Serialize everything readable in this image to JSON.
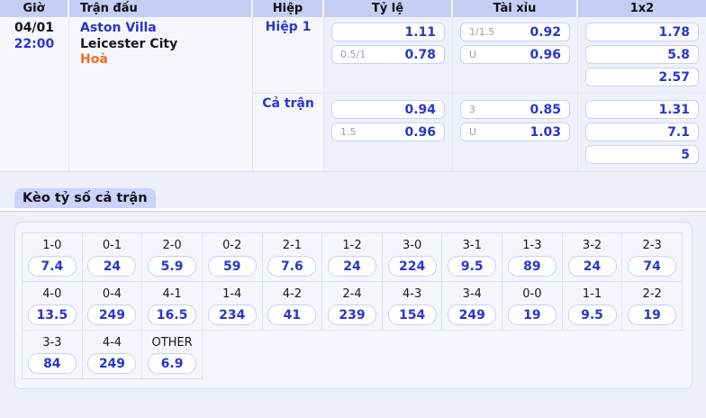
{
  "table": {
    "headers": [
      "Giờ",
      "Trận đấu",
      "Hiệp",
      "Tỷ lệ",
      "Tài xỉu",
      "1x2"
    ]
  },
  "match": {
    "date": "04/01",
    "time": "22:00",
    "home_team": "Aston Villa",
    "away_team": "Leicester City",
    "draw_label": "Hoà"
  },
  "sections": {
    "first_half": {
      "label": "Hiệp 1",
      "ty_le": [
        {
          "handicap": "",
          "odds": "1.11"
        },
        {
          "handicap": "0.5/1",
          "odds": "0.78"
        }
      ],
      "tai_xiu": [
        {
          "handicap": "1/1.5",
          "odds": "0.92"
        },
        {
          "handicap": "U",
          "odds": "0.96"
        }
      ],
      "one_x_two": [
        "1.78",
        "5.8",
        "2.57"
      ]
    },
    "full_time": {
      "label": "Cả trận",
      "ty_le": [
        {
          "handicap": "",
          "odds": "0.94"
        },
        {
          "handicap": "1.5",
          "odds": "0.96"
        }
      ],
      "tai_xiu": [
        {
          "handicap": "3",
          "odds": "0.85"
        },
        {
          "handicap": "U",
          "odds": "1.03"
        }
      ],
      "one_x_two": [
        "1.31",
        "7.1",
        "5"
      ]
    }
  },
  "score_section": {
    "tab_label": "Kèo tỷ số cả trận",
    "columns": 11,
    "cells": [
      {
        "score": "1-0",
        "odds": "7.4"
      },
      {
        "score": "0-1",
        "odds": "24"
      },
      {
        "score": "2-0",
        "odds": "5.9"
      },
      {
        "score": "0-2",
        "odds": "59"
      },
      {
        "score": "2-1",
        "odds": "7.6"
      },
      {
        "score": "1-2",
        "odds": "24"
      },
      {
        "score": "3-0",
        "odds": "224"
      },
      {
        "score": "3-1",
        "odds": "9.5"
      },
      {
        "score": "1-3",
        "odds": "89"
      },
      {
        "score": "3-2",
        "odds": "24"
      },
      {
        "score": "2-3",
        "odds": "74"
      },
      {
        "score": "4-0",
        "odds": "13.5"
      },
      {
        "score": "0-4",
        "odds": "249"
      },
      {
        "score": "4-1",
        "odds": "16.5"
      },
      {
        "score": "1-4",
        "odds": "234"
      },
      {
        "score": "4-2",
        "odds": "41"
      },
      {
        "score": "2-4",
        "odds": "239"
      },
      {
        "score": "4-3",
        "odds": "154"
      },
      {
        "score": "3-4",
        "odds": "249"
      },
      {
        "score": "0-0",
        "odds": "19"
      },
      {
        "score": "1-1",
        "odds": "9.5"
      },
      {
        "score": "2-2",
        "odds": "19"
      },
      {
        "score": "3-3",
        "odds": "84"
      },
      {
        "score": "4-4",
        "odds": "249"
      },
      {
        "score": "OTHER",
        "odds": "6.9"
      }
    ]
  },
  "colors": {
    "accent_blue": "#2a35cf",
    "draw_orange": "#f26b1c",
    "header_bg": "#c6cef4",
    "tab_bg": "#cbd3f8",
    "odds_column_bg": "#eef1fb",
    "page_bg": "#edeff9"
  }
}
